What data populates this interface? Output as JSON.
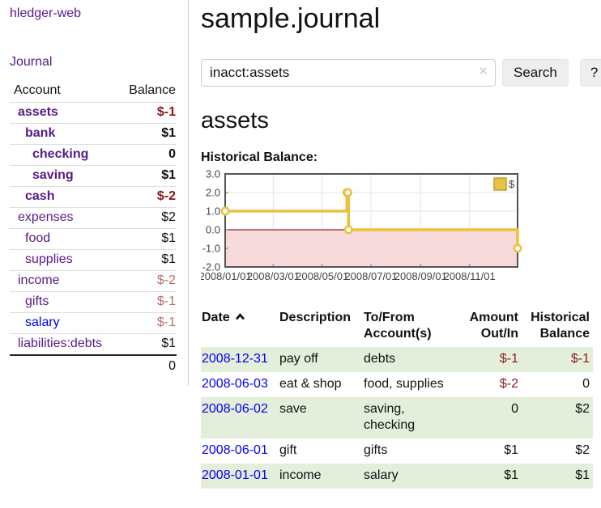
{
  "app": {
    "brand": "hledger-web",
    "nav_journal": "Journal"
  },
  "sidebar": {
    "table": {
      "headers": [
        "Account",
        "Balance"
      ],
      "rows": [
        {
          "account": "assets",
          "indent": 1,
          "bold": true,
          "balance": "$-1",
          "balance_class": "neg-strong",
          "link_color": "purple"
        },
        {
          "account": "bank",
          "indent": 2,
          "bold": true,
          "balance": "$1",
          "balance_class": "",
          "link_color": "purple"
        },
        {
          "account": "checking",
          "indent": 3,
          "bold": true,
          "balance": "0",
          "balance_class": "",
          "link_color": "purple"
        },
        {
          "account": "saving",
          "indent": 3,
          "bold": true,
          "balance": "$1",
          "balance_class": "",
          "link_color": "purple"
        },
        {
          "account": "cash",
          "indent": 2,
          "bold": true,
          "balance": "$-2",
          "balance_class": "neg-strong",
          "link_color": "purple"
        },
        {
          "account": "expenses",
          "indent": 1,
          "bold": false,
          "balance": "$2",
          "balance_class": "",
          "link_color": "purple"
        },
        {
          "account": "food",
          "indent": 2,
          "bold": false,
          "balance": "$1",
          "balance_class": "",
          "link_color": "purple"
        },
        {
          "account": "supplies",
          "indent": 2,
          "bold": false,
          "balance": "$1",
          "balance_class": "",
          "link_color": "purple"
        },
        {
          "account": "income",
          "indent": 1,
          "bold": false,
          "balance": "$-2",
          "balance_class": "neg-soft",
          "link_color": "purple"
        },
        {
          "account": "gifts",
          "indent": 2,
          "bold": false,
          "balance": "$-1",
          "balance_class": "neg-soft",
          "link_color": "purple"
        },
        {
          "account": "salary",
          "indent": 2,
          "bold": false,
          "balance": "$-1",
          "balance_class": "neg-soft",
          "link_color": "blue"
        },
        {
          "account": "liabilities:debts",
          "indent": 1,
          "bold": false,
          "balance": "$1",
          "balance_class": "",
          "link_color": "purple"
        }
      ],
      "total": "0"
    }
  },
  "main": {
    "title": "sample.journal",
    "search": {
      "value": "inacct:assets",
      "clear_icon": "✕",
      "button_label": "Search",
      "help_label": "?"
    },
    "account_heading": "assets",
    "chart_label": "Historical Balance:"
  },
  "chart_data": {
    "type": "line",
    "title": "Historical Balance",
    "steps": true,
    "legend": [
      {
        "label": "$",
        "color": "#e8c240"
      }
    ],
    "legend_position": "top-right",
    "x_ticks": [
      "2008/01/01",
      "2008/03/01",
      "2008/05/01",
      "2008/07/01",
      "2008/09/01",
      "2008/11/01"
    ],
    "y_ticks": [
      "3.0",
      "2.0",
      "1.0",
      "0.0",
      "-1.0",
      "-2.0"
    ],
    "ylim": [
      -2,
      3
    ],
    "xlim_dates": [
      "2008-01-01",
      "2008-12-31"
    ],
    "points": [
      [
        "2008-01-01",
        1
      ],
      [
        "2008-06-01",
        2
      ],
      [
        "2008-06-02",
        2
      ],
      [
        "2008-06-03",
        0
      ],
      [
        "2008-12-31",
        -1
      ]
    ],
    "line_color": "#e8c240",
    "marker_fill": "#ffffff",
    "grid_color": "#e6e6e6",
    "border_color": "#545454",
    "negative_fill": "#f9dada",
    "zero_line_color": "#991b1b",
    "tick_label_color": "#444444"
  },
  "register": {
    "headers": {
      "date": "Date",
      "description": "Description",
      "tofrom": "To/From Account(s)",
      "amount": "Amount Out/In",
      "balance": "Historical Balance"
    },
    "sort_indicator": "chevron-up",
    "rows": [
      {
        "date": "2008-12-31",
        "description": "pay off",
        "accounts": "debts",
        "amount": "$-1",
        "amount_neg": true,
        "balance": "$-1",
        "balance_neg": true
      },
      {
        "date": "2008-06-03",
        "description": "eat & shop",
        "accounts": "food, supplies",
        "amount": "$-2",
        "amount_neg": true,
        "balance": "0",
        "balance_neg": false
      },
      {
        "date": "2008-06-02",
        "description": "save",
        "accounts": "saving, checking",
        "amount": "0",
        "amount_neg": false,
        "balance": "$2",
        "balance_neg": false
      },
      {
        "date": "2008-06-01",
        "description": "gift",
        "accounts": "gifts",
        "amount": "$1",
        "amount_neg": false,
        "balance": "$2",
        "balance_neg": false
      },
      {
        "date": "2008-01-01",
        "description": "income",
        "accounts": "salary",
        "amount": "$1",
        "amount_neg": false,
        "balance": "$1",
        "balance_neg": false
      }
    ]
  },
  "colors": {
    "link_purple": "#551a8b",
    "link_blue": "#0000ee",
    "negative_strong": "#8b1515",
    "negative_soft": "#bc6b6b",
    "register_negative": "#8b1a1a",
    "row_stripe_green": "#e3eedb"
  }
}
